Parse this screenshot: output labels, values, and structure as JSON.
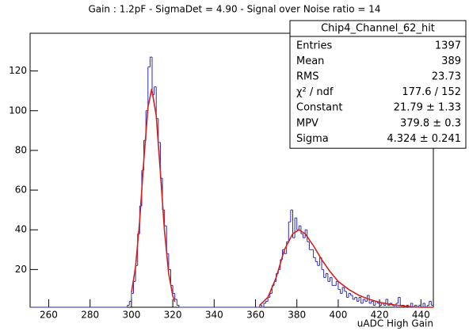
{
  "chart_data": {
    "type": "histogram",
    "title": "Gain : 1.2pF - SigmaDet = 4.90 - Signal over Noise ratio = 14",
    "x_label": "uADC High Gain",
    "color": "#2b2bb8",
    "bins": [
      251,
      252,
      253,
      254,
      255,
      256,
      257,
      258,
      259,
      260,
      261,
      262,
      263,
      264,
      265,
      266,
      267,
      268,
      269,
      270,
      271,
      272,
      273,
      274,
      275,
      276,
      277,
      278,
      279,
      280,
      281,
      282,
      283,
      284,
      285,
      286,
      287,
      288,
      289,
      290,
      291,
      292,
      293,
      294,
      295,
      296,
      297,
      298,
      299,
      300,
      301,
      302,
      303,
      304,
      305,
      306,
      307,
      308,
      309,
      310,
      311,
      312,
      313,
      314,
      315,
      316,
      317,
      318,
      319,
      320,
      321,
      322,
      323,
      324,
      325,
      326,
      327,
      328,
      329,
      330,
      331,
      332,
      333,
      334,
      335,
      336,
      337,
      338,
      339,
      340,
      341,
      342,
      343,
      344,
      345,
      346,
      347,
      348,
      349,
      350,
      351,
      352,
      353,
      354,
      355,
      356,
      357,
      358,
      359,
      360,
      361,
      362,
      363,
      364,
      365,
      366,
      367,
      368,
      369,
      370,
      371,
      372,
      373,
      374,
      375,
      376,
      377,
      378,
      379,
      380,
      381,
      382,
      383,
      384,
      385,
      386,
      387,
      388,
      389,
      390,
      391,
      392,
      393,
      394,
      395,
      396,
      397,
      398,
      399,
      400,
      401,
      402,
      403,
      404,
      405,
      406,
      407,
      408,
      409,
      410,
      411,
      412,
      413,
      414,
      415,
      416,
      417,
      418,
      419,
      420,
      421,
      422,
      423,
      424,
      425,
      426,
      427,
      428,
      429,
      430,
      431,
      432,
      433,
      434,
      435,
      436,
      437,
      438,
      439,
      440,
      441,
      442,
      443,
      444,
      445,
      446
    ],
    "values": [
      0,
      0,
      0,
      0,
      0,
      1,
      0,
      0,
      0,
      0,
      0,
      0,
      0,
      0,
      0,
      0,
      0,
      0,
      0,
      0,
      0,
      0,
      0,
      0,
      0,
      0,
      0,
      0,
      1,
      0,
      0,
      0,
      0,
      0,
      1,
      0,
      0,
      0,
      0,
      0,
      0,
      0,
      0,
      1,
      0,
      0,
      1,
      2,
      4,
      8,
      14,
      22,
      38,
      52,
      70,
      85,
      100,
      122,
      127,
      108,
      112,
      96,
      84,
      66,
      50,
      42,
      28,
      20,
      12,
      8,
      5,
      2,
      1,
      0,
      1,
      0,
      0,
      0,
      0,
      0,
      0,
      0,
      0,
      1,
      0,
      0,
      0,
      0,
      0,
      0,
      0,
      0,
      0,
      0,
      0,
      0,
      0,
      1,
      0,
      0,
      0,
      0,
      0,
      0,
      0,
      0,
      0,
      0,
      1,
      0,
      1,
      2,
      1,
      3,
      4,
      6,
      8,
      12,
      14,
      18,
      20,
      25,
      30,
      28,
      34,
      44,
      50,
      36,
      46,
      40,
      42,
      38,
      36,
      40,
      34,
      30,
      30,
      26,
      24,
      22,
      26,
      20,
      16,
      18,
      14,
      16,
      12,
      12,
      14,
      10,
      8,
      11,
      9,
      6,
      8,
      7,
      5,
      6,
      4,
      6,
      3,
      5,
      4,
      7,
      3,
      4,
      2,
      4,
      3,
      2,
      3,
      2,
      5,
      2,
      3,
      2,
      1,
      3,
      6,
      2,
      2,
      1,
      2,
      1,
      3,
      1,
      2,
      1,
      2,
      1,
      3,
      1,
      2,
      4,
      2
    ],
    "fits": [
      {
        "color": "#d42020",
        "x": [
          300,
          302,
          304,
          306,
          308,
          309.8,
          312,
          314,
          316,
          318,
          320,
          321
        ],
        "values": [
          8.3,
          21.4,
          44.7,
          75.2,
          101.7,
          111,
          97.4,
          68.9,
          39.3,
          18,
          6.7,
          3.7
        ]
      },
      {
        "color": "#d42020",
        "x": [
          362,
          366,
          370,
          374,
          378,
          381,
          384,
          388,
          392,
          396,
          400,
          405,
          410,
          415,
          420,
          425,
          430,
          435,
          440,
          446
        ],
        "values": [
          2,
          6,
          16,
          30,
          38,
          40,
          38,
          32,
          25,
          19,
          14,
          10,
          7,
          5,
          3.5,
          2.5,
          1.8,
          1.3,
          1,
          0.7
        ]
      }
    ],
    "xlim": [
      251,
      446
    ],
    "ylim": [
      1,
      139
    ],
    "xticks": [
      260,
      280,
      300,
      320,
      340,
      360,
      380,
      400,
      420,
      440
    ],
    "yticks": [
      20,
      40,
      60,
      80,
      100,
      120
    ],
    "stats_box": {
      "title": "Chip4_Channel_62_hit",
      "rows": [
        [
          "Entries",
          "1397"
        ],
        [
          "Mean",
          "389"
        ],
        [
          "RMS",
          "23.73"
        ],
        [
          "χ² / ndf",
          "177.6 / 152"
        ],
        [
          "Constant",
          "21.79 ± 1.33"
        ],
        [
          "MPV",
          "379.8 ± 0.3"
        ],
        [
          "Sigma",
          "4.324 ± 0.241"
        ]
      ]
    }
  }
}
